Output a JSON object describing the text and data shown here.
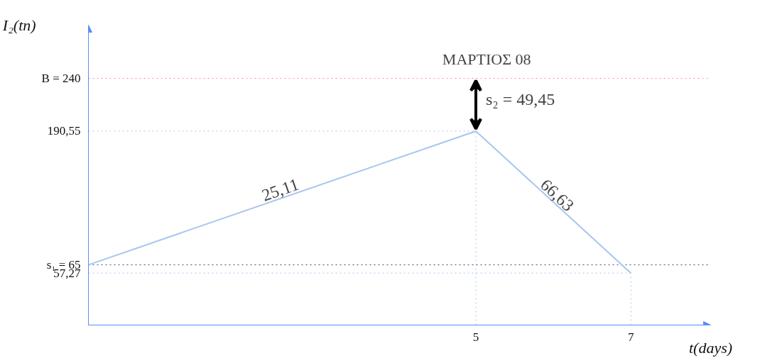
{
  "chart_data": {
    "type": "line",
    "title": "ΜΑΡΤΙΟΣ 08",
    "xlabel": "t(days)",
    "ylabel": "I₂(tn)",
    "x": [
      0,
      5,
      7
    ],
    "series": [
      {
        "color": "#a9c5ef",
        "values": [
          65,
          190.55,
          57.27
        ]
      }
    ],
    "xlim": [
      0,
      8.03
    ],
    "ylim": [
      8.5,
      290
    ],
    "xticks": [
      5,
      7
    ],
    "yticks": [
      {
        "value": 57.27,
        "label": "57,27"
      },
      {
        "value": 65,
        "label": "s₁ = 65"
      },
      {
        "value": 190.55,
        "label": "190,55"
      },
      {
        "value": 240,
        "label": "B = 240"
      }
    ],
    "ref_lines": [
      {
        "axis": "y",
        "value": 240,
        "color": "#f08a8a",
        "line_style": "dotted"
      },
      {
        "axis": "y",
        "value": 65,
        "color": "#44446a",
        "line_style": "dotted"
      },
      {
        "axis": "y",
        "value": 190.55,
        "color": "#a9c5ef",
        "line_style": "dotted"
      },
      {
        "axis": "y",
        "value": 57.27,
        "color": "#a9c5ef",
        "line_style": "dotted"
      },
      {
        "axis": "x",
        "value": 5,
        "color": "#a9c5ef",
        "line_style": "dotted"
      },
      {
        "axis": "x",
        "value": 7,
        "color": "#a9c5ef",
        "line_style": "dotted"
      }
    ],
    "annotations": [
      "25,11",
      "66,63",
      "s₂ = 49,45"
    ],
    "grid": false,
    "marker": "none",
    "line_style": "solid"
  }
}
